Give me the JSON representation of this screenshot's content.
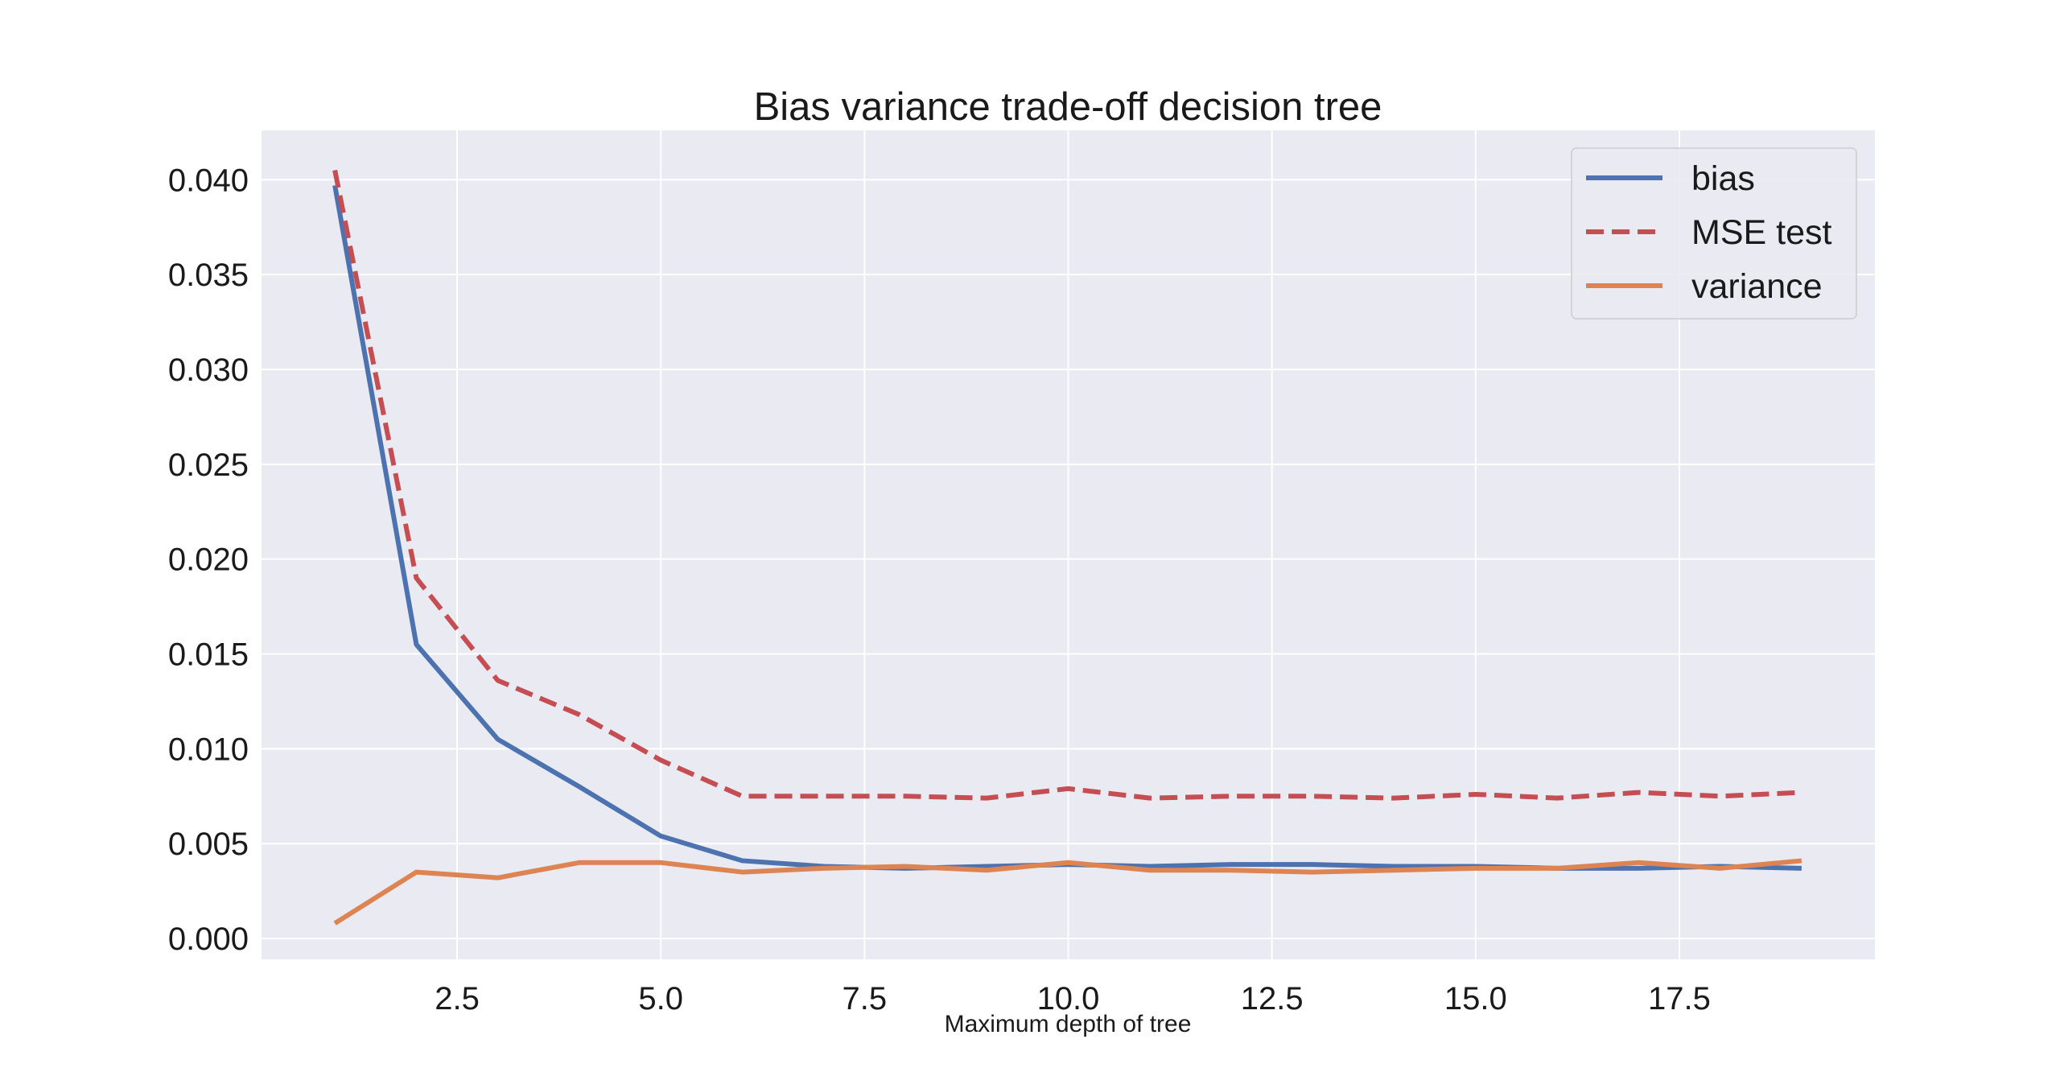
{
  "chart_data": {
    "type": "line",
    "title": "Bias variance trade-off decision tree",
    "xlabel": "Maximum depth of tree",
    "ylabel": "",
    "xlim": [
      0.1,
      19.9
    ],
    "ylim": [
      -0.0011,
      0.0426
    ],
    "grid": true,
    "legend_position": "top-right",
    "x_ticks": [
      2.5,
      5.0,
      7.5,
      10.0,
      12.5,
      15.0,
      17.5
    ],
    "x_tick_labels": [
      "2.5",
      "5.0",
      "7.5",
      "10.0",
      "12.5",
      "15.0",
      "17.5"
    ],
    "y_ticks": [
      0.0,
      0.005,
      0.01,
      0.015,
      0.02,
      0.025,
      0.03,
      0.035,
      0.04
    ],
    "y_tick_labels": [
      "0.000",
      "0.005",
      "0.010",
      "0.015",
      "0.020",
      "0.025",
      "0.030",
      "0.035",
      "0.040"
    ],
    "x": [
      1,
      2,
      3,
      4,
      5,
      6,
      7,
      8,
      9,
      10,
      11,
      12,
      13,
      14,
      15,
      16,
      17,
      18,
      19
    ],
    "series": [
      {
        "name": "bias",
        "color": "#4c72b0",
        "dash": "solid",
        "values": [
          0.0397,
          0.0155,
          0.0105,
          0.008,
          0.0054,
          0.0041,
          0.0038,
          0.0037,
          0.0038,
          0.0039,
          0.0038,
          0.0039,
          0.0039,
          0.0038,
          0.0038,
          0.0037,
          0.0037,
          0.0038,
          0.0037
        ]
      },
      {
        "name": "MSE test",
        "color": "#c44e52",
        "dash": "dashed",
        "values": [
          0.0405,
          0.019,
          0.0136,
          0.0118,
          0.0094,
          0.0075,
          0.0075,
          0.0075,
          0.0074,
          0.0079,
          0.0074,
          0.0075,
          0.0075,
          0.0074,
          0.0076,
          0.0074,
          0.0077,
          0.0075,
          0.0077
        ]
      },
      {
        "name": "variance",
        "color": "#dd8452",
        "dash": "solid",
        "values": [
          0.0008,
          0.0035,
          0.0032,
          0.004,
          0.004,
          0.0035,
          0.0037,
          0.0038,
          0.0036,
          0.004,
          0.0036,
          0.0036,
          0.0035,
          0.0036,
          0.0037,
          0.0037,
          0.004,
          0.0037,
          0.0041
        ]
      }
    ]
  }
}
